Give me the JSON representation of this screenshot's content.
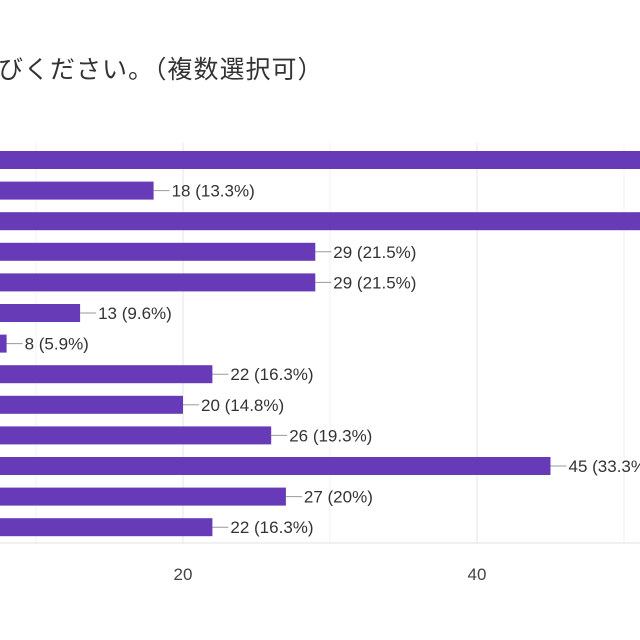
{
  "chart_data": {
    "type": "bar",
    "orientation": "horizontal",
    "title": "びください。（複数選択可）",
    "bar_color": "#673ab7",
    "xticks": [
      20,
      40
    ],
    "grid": true,
    "values": [
      null,
      18,
      null,
      29,
      29,
      13,
      8,
      22,
      20,
      26,
      45,
      27,
      22
    ],
    "labels": [
      "",
      "18 (13.3%)",
      "",
      "29 (21.5%)",
      "29 (21.5%)",
      "13 (9.6%)",
      "8 (5.9%)",
      "22 (16.3%)",
      "20 (14.8%)",
      "26 (19.3%)",
      "45 (33.3%)",
      "27 (20%)",
      "22 (16.3%)"
    ]
  }
}
